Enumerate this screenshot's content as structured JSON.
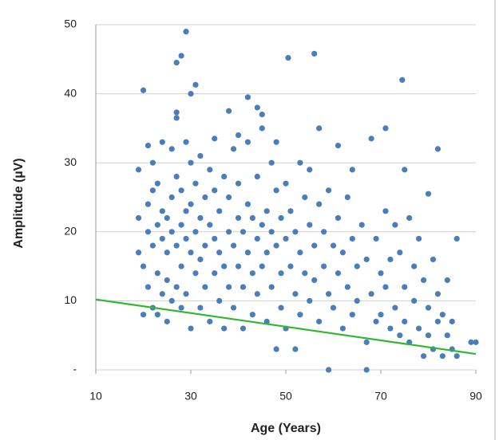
{
  "chart_data": {
    "type": "scatter",
    "x_label": "Age (Years)",
    "y_label": "Amplitude (µV)",
    "xlim": [
      10,
      90
    ],
    "xticks": [
      10,
      30,
      50,
      70,
      90
    ],
    "ylim": [
      0,
      50
    ],
    "yticks": [
      {
        "value": 0,
        "label": "-"
      },
      10,
      20,
      30,
      40,
      50
    ],
    "grid": true,
    "series": [
      {
        "color": "#4a7ebb",
        "x": [
          19,
          19,
          19,
          20,
          20,
          20,
          21,
          21,
          21,
          21,
          22,
          22,
          22,
          22,
          23,
          23,
          23,
          23,
          24,
          24,
          24,
          24,
          25,
          25,
          25,
          25,
          26,
          26,
          26,
          26,
          27,
          27,
          27,
          27,
          27,
          27,
          28,
          28,
          28,
          28,
          28,
          29,
          29,
          29,
          29,
          29,
          30,
          30,
          30,
          30,
          30,
          31,
          31,
          31,
          31,
          32,
          32,
          32,
          32,
          33,
          33,
          33,
          34,
          34,
          34,
          35,
          35,
          35,
          35,
          36,
          36,
          36,
          37,
          37,
          37,
          38,
          38,
          38,
          38,
          39,
          39,
          39,
          40,
          40,
          40,
          40,
          41,
          41,
          41,
          42,
          42,
          42,
          42,
          43,
          43,
          43,
          44,
          44,
          44,
          44,
          45,
          45,
          45,
          45,
          46,
          46,
          46,
          47,
          47,
          47,
          48,
          48,
          48,
          48,
          49,
          49,
          49,
          50,
          50,
          50,
          50.5,
          51,
          51,
          52,
          52,
          52,
          53,
          53,
          53,
          54,
          54,
          55,
          55,
          55,
          56,
          56,
          56,
          57,
          57,
          57,
          58,
          58,
          59,
          59,
          59,
          60,
          60,
          61,
          61,
          61,
          62,
          62,
          63,
          63,
          64,
          64,
          64,
          65,
          65,
          66,
          67,
          67,
          67,
          68,
          68,
          69,
          69,
          70,
          70,
          71,
          71,
          71,
          72,
          72,
          73,
          73,
          74,
          74,
          74.5,
          75,
          75,
          75,
          76,
          76,
          77,
          77,
          78,
          78,
          79,
          79,
          80,
          80,
          80,
          81,
          81,
          82,
          82,
          82,
          83,
          83,
          84,
          84,
          85,
          85,
          86,
          86,
          89,
          90
        ],
        "y": [
          17,
          22,
          29,
          40.5,
          15,
          8,
          24,
          32.5,
          20,
          12,
          18,
          26,
          9,
          30,
          21,
          14,
          27,
          8,
          19,
          23,
          11,
          33,
          17,
          22,
          13,
          7,
          20,
          25,
          32,
          10,
          36.5,
          37.3,
          44.5,
          18,
          28,
          12,
          45.5,
          21,
          15,
          9,
          26,
          49,
          33,
          19,
          23,
          11,
          40,
          30,
          17,
          6,
          24,
          41.3,
          20,
          14,
          27,
          31,
          22,
          16,
          9,
          25,
          18,
          12,
          29,
          21,
          7,
          33.5,
          19,
          14,
          26,
          23,
          17,
          10,
          28,
          15,
          6,
          37.5,
          20,
          25,
          12,
          32,
          18,
          9,
          34,
          22,
          15,
          27,
          20,
          12,
          6,
          39.5,
          33,
          24,
          17,
          22,
          14,
          8,
          38,
          28,
          19,
          11,
          37,
          35,
          21,
          15,
          23,
          7,
          17,
          30,
          20,
          12,
          33,
          26,
          18,
          3,
          22,
          14,
          9,
          27,
          19,
          6,
          45.2,
          23,
          15,
          20,
          11,
          3,
          30,
          17,
          8,
          25,
          14,
          29,
          21,
          10,
          45.8,
          18,
          13,
          35,
          24,
          7,
          20,
          15,
          0,
          26,
          11,
          18,
          9,
          32.5,
          22,
          14,
          17,
          6,
          25,
          12,
          29,
          19,
          8,
          15,
          10,
          21,
          0,
          4,
          16,
          33.5,
          11,
          19,
          7,
          14,
          8,
          35,
          23,
          12,
          16,
          6,
          21,
          9,
          17,
          5,
          42,
          29,
          12,
          7,
          22,
          4,
          15,
          10,
          19,
          6,
          13,
          2,
          25.5,
          9,
          5,
          16,
          3,
          32,
          11,
          7,
          8,
          2,
          13,
          5,
          7,
          3,
          19,
          2,
          4,
          4
        ]
      }
    ],
    "trend_line": {
      "color": "#2eb82e",
      "x": [
        10,
        90
      ],
      "y": [
        10.2,
        2.3
      ]
    }
  }
}
